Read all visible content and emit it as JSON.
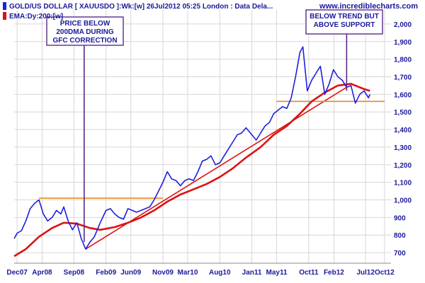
{
  "chart_data": {
    "type": "line",
    "title": "GOLD/US DOLLAR [ XAUUSDO ]:Wk:[w]  26Jul2012 05:25 London : Data Dela...",
    "ema_legend": "EMA:Dy:200:[w]",
    "brand": "www.incrediblecharts.com",
    "x_axis": {
      "type": "date",
      "range": [
        "2007-11-19",
        "2012-11-01"
      ],
      "tick_labels": [
        "Dec07",
        "Apr08",
        "Sep08",
        "Feb09",
        "Jun09",
        "Nov09",
        "Mar10",
        "Aug10",
        "Jan11",
        "May11",
        "Oct11",
        "Feb12",
        "Jul12",
        "Oct12"
      ],
      "tick_dates": [
        "2007-12-03",
        "2008-04-01",
        "2008-09-01",
        "2009-02-02",
        "2009-06-01",
        "2009-11-02",
        "2010-03-01",
        "2010-08-02",
        "2011-01-03",
        "2011-05-02",
        "2011-10-03",
        "2012-02-01",
        "2012-07-02",
        "2012-10-01"
      ]
    },
    "y_axis": {
      "range": [
        640,
        2080
      ],
      "tick_labels": [
        "700",
        "800",
        "900",
        "1,000",
        "1,100",
        "1,200",
        "1,300",
        "1,400",
        "1,500",
        "1,600",
        "1,700",
        "1,800",
        "1,900",
        "2,000"
      ],
      "tick_values": [
        700,
        800,
        900,
        1000,
        1100,
        1200,
        1300,
        1400,
        1500,
        1600,
        1700,
        1800,
        1900,
        2000
      ],
      "position": "right"
    },
    "grid": true,
    "series": [
      {
        "name": "GOLD/US DOLLAR [ XAUUSDO ]:Wk:[w]",
        "color": "#1f1fdd",
        "x": [
          "2007-11-19",
          "2007-12-03",
          "2007-12-24",
          "2008-01-14",
          "2008-02-04",
          "2008-02-25",
          "2008-03-17",
          "2008-04-07",
          "2008-04-28",
          "2008-05-19",
          "2008-06-09",
          "2008-06-30",
          "2008-07-14",
          "2008-08-04",
          "2008-08-25",
          "2008-09-15",
          "2008-10-06",
          "2008-10-27",
          "2008-11-17",
          "2008-12-08",
          "2009-01-05",
          "2009-02-02",
          "2009-02-23",
          "2009-03-16",
          "2009-04-06",
          "2009-04-27",
          "2009-05-18",
          "2009-06-08",
          "2009-06-29",
          "2009-07-20",
          "2009-08-10",
          "2009-08-31",
          "2009-09-21",
          "2009-10-12",
          "2009-11-02",
          "2009-11-23",
          "2009-12-14",
          "2010-01-04",
          "2010-01-25",
          "2010-02-15",
          "2010-03-08",
          "2010-03-29",
          "2010-04-19",
          "2010-05-10",
          "2010-05-31",
          "2010-06-21",
          "2010-07-12",
          "2010-08-02",
          "2010-08-23",
          "2010-09-13",
          "2010-10-04",
          "2010-10-25",
          "2010-11-15",
          "2010-12-06",
          "2011-01-03",
          "2011-01-24",
          "2011-02-14",
          "2011-03-07",
          "2011-03-28",
          "2011-04-18",
          "2011-05-09",
          "2011-05-30",
          "2011-06-20",
          "2011-07-11",
          "2011-08-01",
          "2011-08-22",
          "2011-09-05",
          "2011-09-26",
          "2011-10-17",
          "2011-11-07",
          "2011-11-28",
          "2011-12-19",
          "2012-01-09",
          "2012-01-30",
          "2012-02-20",
          "2012-03-12",
          "2012-04-02",
          "2012-04-23",
          "2012-05-14",
          "2012-06-04",
          "2012-06-25",
          "2012-07-16",
          "2012-07-23"
        ],
        "values": [
          780,
          810,
          825,
          880,
          950,
          980,
          1000,
          920,
          880,
          900,
          940,
          920,
          960,
          880,
          830,
          870,
          780,
          720,
          760,
          790,
          870,
          940,
          950,
          920,
          900,
          890,
          950,
          940,
          930,
          940,
          950,
          960,
          1000,
          1050,
          1100,
          1160,
          1120,
          1110,
          1080,
          1110,
          1120,
          1110,
          1160,
          1220,
          1230,
          1250,
          1200,
          1210,
          1250,
          1290,
          1330,
          1370,
          1380,
          1410,
          1370,
          1340,
          1380,
          1420,
          1440,
          1490,
          1510,
          1530,
          1520,
          1580,
          1700,
          1840,
          1870,
          1620,
          1680,
          1720,
          1760,
          1600,
          1660,
          1740,
          1700,
          1680,
          1640,
          1650,
          1550,
          1600,
          1620,
          1580,
          1600
        ]
      },
      {
        "name": "EMA:Dy:200:[w]",
        "color": "#dd1111",
        "x": [
          "2007-11-19",
          "2008-01-14",
          "2008-03-17",
          "2008-05-19",
          "2008-07-14",
          "2008-09-15",
          "2008-11-17",
          "2009-01-05",
          "2009-03-16",
          "2009-05-18",
          "2009-07-20",
          "2009-09-21",
          "2009-11-23",
          "2010-01-25",
          "2010-03-29",
          "2010-05-31",
          "2010-08-02",
          "2010-10-04",
          "2010-12-06",
          "2011-02-14",
          "2011-04-18",
          "2011-06-20",
          "2011-08-22",
          "2011-10-17",
          "2011-12-19",
          "2012-02-20",
          "2012-04-23",
          "2012-06-25",
          "2012-07-23"
        ],
        "values": [
          680,
          720,
          790,
          840,
          870,
          865,
          840,
          830,
          845,
          870,
          900,
          940,
          990,
          1030,
          1060,
          1090,
          1130,
          1180,
          1240,
          1300,
          1370,
          1420,
          1490,
          1560,
          1610,
          1650,
          1660,
          1630,
          1620
        ]
      }
    ],
    "lines": [
      {
        "name": "uptrend",
        "color": "#dd1111",
        "x": [
          "2008-10-27",
          "2012-04-02"
        ],
        "values": [
          720,
          1640
        ]
      },
      {
        "name": "resistance-1000",
        "color": "#e88a1a",
        "x": [
          "2008-03-17",
          "2009-11-02"
        ],
        "values": [
          1010,
          1010
        ]
      },
      {
        "name": "support-1560",
        "color": "#e88a1a",
        "x": [
          "2011-05-02",
          "2012-10-01"
        ],
        "values": [
          1560,
          1560
        ]
      }
    ],
    "annotations": [
      {
        "text": [
          "PRICE BELOW",
          "200DMA DURING",
          "GFC CORRECTION"
        ],
        "pointer_x": "2008-10-20",
        "pointer_y": 760
      },
      {
        "text": [
          "BELOW TREND BUT",
          "ABOVE SUPPORT"
        ],
        "pointer_x": "2012-04-02",
        "pointer_y": 1620
      }
    ]
  }
}
